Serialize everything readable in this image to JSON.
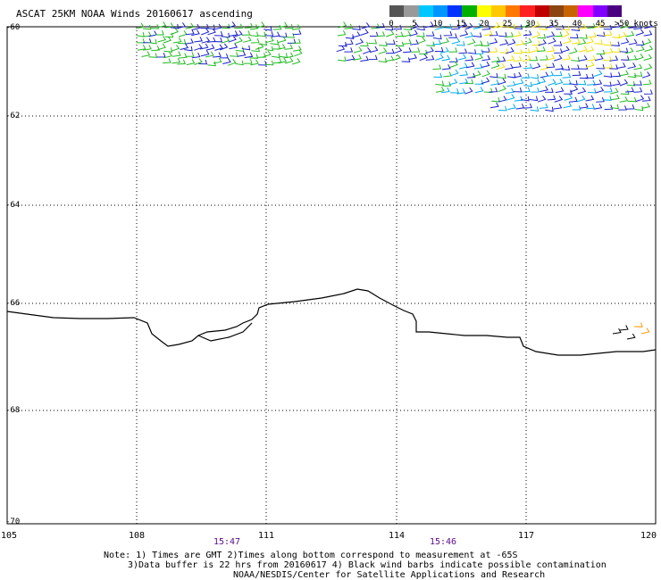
{
  "header": {
    "title": "ASCAT 25KM NOAA Winds 20160617 ascending"
  },
  "legend": {
    "labels": [
      "0",
      "5",
      "10",
      "15",
      "20",
      "25",
      "30",
      "35",
      "40",
      "45"
    ],
    "max_label": ">50 knots",
    "colors": [
      "#555555",
      "#999999",
      "#00c8ff",
      "#0096ff",
      "#0033ff",
      "#00b000",
      "#ffff00",
      "#ffc800",
      "#ff7800",
      "#ff2020",
      "#c00000",
      "#8b4513",
      "#c86400",
      "#ff00ff",
      "#8000ff",
      "#4b0082"
    ]
  },
  "axes": {
    "y_ticks": [
      "-60",
      "-62",
      "-64",
      "-66",
      "-68",
      "-70"
    ],
    "x_ticks": [
      "105",
      "108",
      "111",
      "114",
      "117",
      "120"
    ],
    "times": [
      "15:47",
      "15:46"
    ]
  },
  "colors": {
    "barb_green": "#22bb22",
    "barb_blue": "#1a22cc",
    "barb_cyan": "#00aaee",
    "barb_yellow": "#f0e000",
    "barb_black": "#000000",
    "barb_orange": "#ff9900",
    "time_color": "#5a0a8a"
  },
  "notes": {
    "line1": "Note: 1) Times are GMT 2)Times along bottom correspond to measurement at -65S",
    "line2": "3)Data buffer is 22 hrs from 20160617 4) Black wind barbs indicate possible contamination",
    "line3": "NOAA/NESDIS/Center for Satellite Applications and Research"
  }
}
